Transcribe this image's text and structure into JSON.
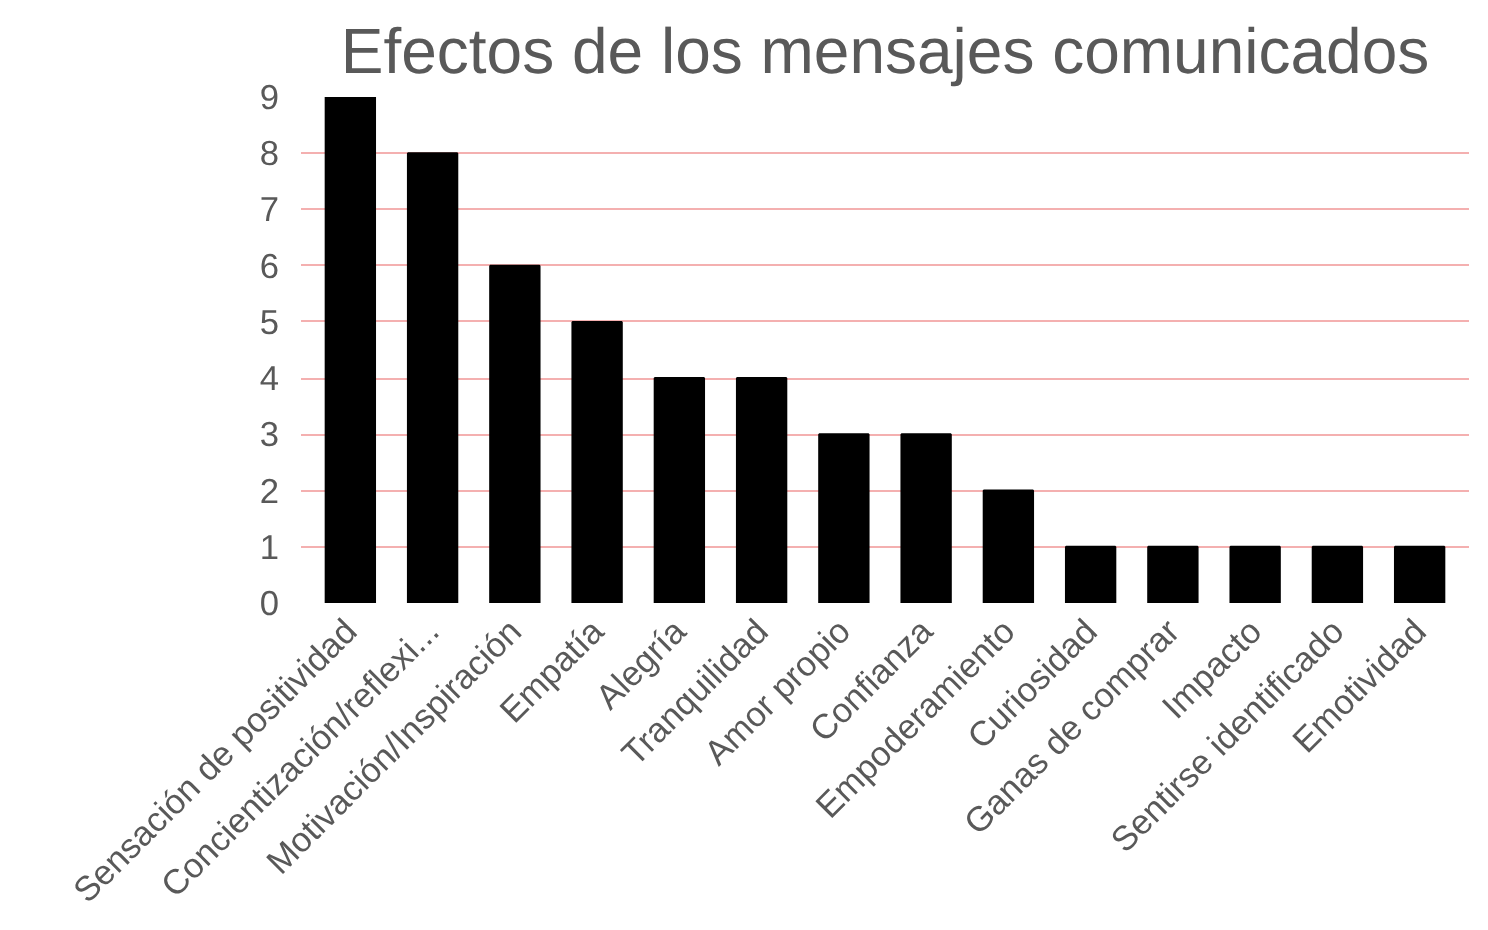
{
  "chart_data": {
    "type": "bar",
    "title": "Efectos de los mensajes comunicados",
    "categories": [
      "Sensación de positividad",
      "Concientización/reflexi...",
      "Motivación/Inspiración",
      "Empatía",
      "Alegría",
      "Tranquilidad",
      "Amor propio",
      "Confianza",
      "Empoderamiento",
      "Curiosidad",
      "Ganas de comprar",
      "Impacto",
      "Sentirse identificado",
      "Emotividad"
    ],
    "values": [
      9,
      8,
      6,
      5,
      4,
      4,
      3,
      3,
      2,
      1,
      1,
      1,
      1,
      1
    ],
    "color": "#000000",
    "ylim": [
      0,
      9
    ],
    "yticks": [
      0,
      1,
      2,
      3,
      4,
      5,
      6,
      7,
      8,
      9
    ],
    "grid": "y"
  }
}
